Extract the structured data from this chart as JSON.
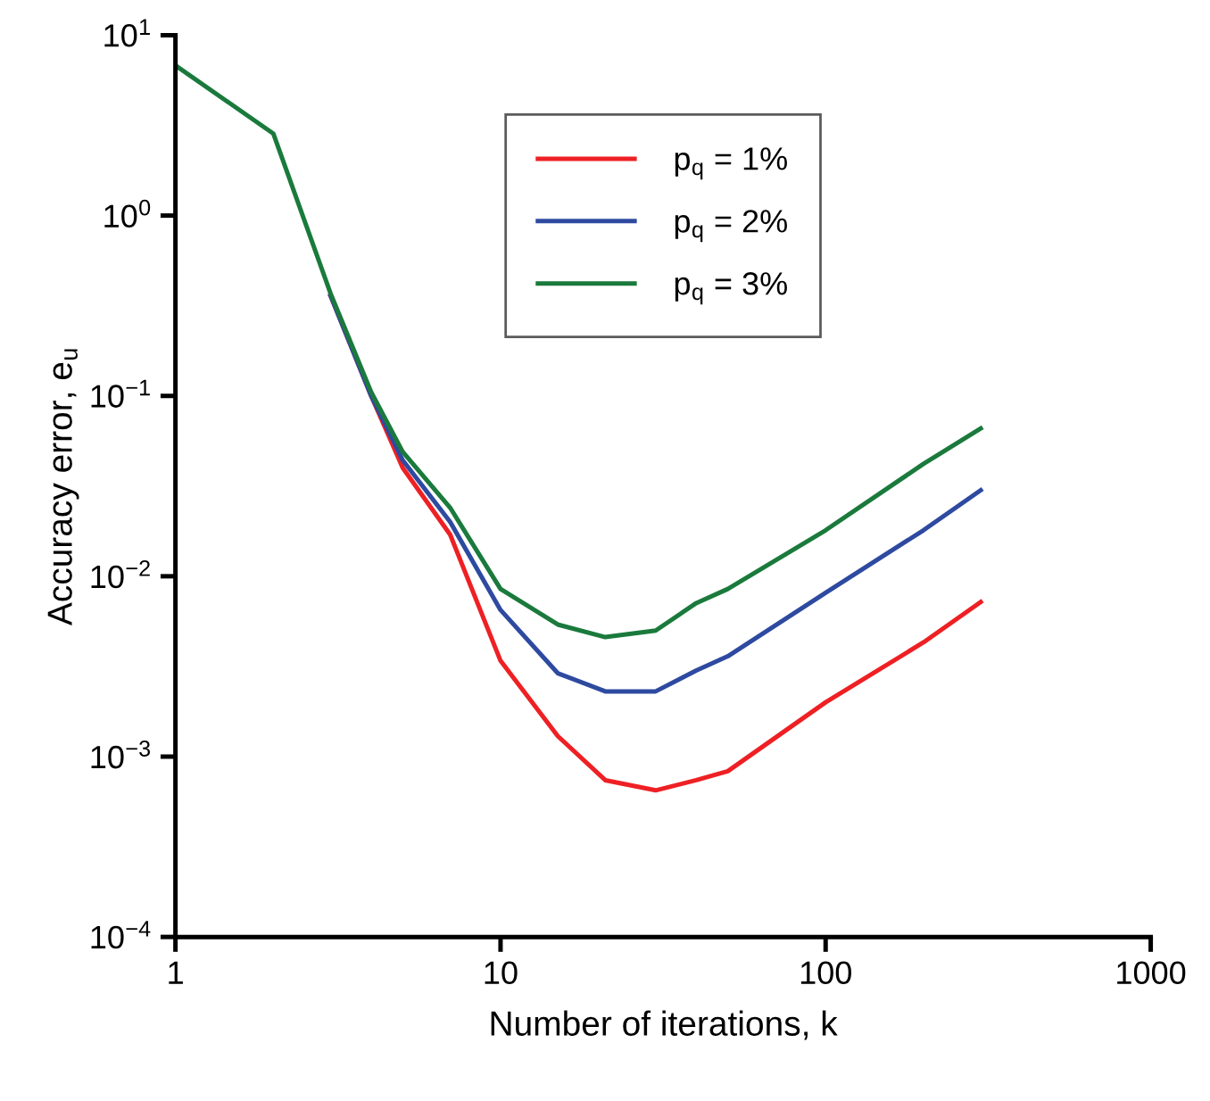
{
  "chart_data": {
    "type": "line",
    "xlabel": "Number of iterations, k",
    "ylabel": "Accuracy error, e$_{u}$",
    "x": [
      1,
      2,
      3,
      4,
      5,
      7,
      10,
      15,
      21,
      30,
      40,
      50,
      100,
      200,
      300
    ],
    "series": [
      {
        "name": "p$_{q}$ = 1%",
        "color": "#ee2024",
        "values": [
          null,
          null,
          0.36,
          0.1,
          0.04,
          0.017,
          0.0034,
          0.0013,
          0.00074,
          0.00065,
          0.00074,
          0.00083,
          0.002,
          0.0043,
          0.0072
        ]
      },
      {
        "name": "p$_{q}$ = 2%",
        "color": "#2e4aa0",
        "values": [
          null,
          null,
          0.36,
          0.1,
          0.044,
          0.02,
          0.0065,
          0.0029,
          0.0023,
          0.0023,
          0.003,
          0.0036,
          0.0081,
          0.018,
          0.03
        ]
      },
      {
        "name": "p$_{q}$ = 3%",
        "color": "#1a7a3c",
        "values": [
          6.8,
          2.85,
          0.37,
          0.105,
          0.049,
          0.024,
          0.0085,
          0.0054,
          0.0046,
          0.005,
          0.0071,
          0.0085,
          0.018,
          0.042,
          0.066
        ]
      }
    ],
    "log": "xy",
    "xlim": [
      1,
      1000
    ],
    "ylim": [
      0.0001,
      10
    ],
    "xticks": [
      1,
      10,
      100,
      1000
    ],
    "yticks": [
      {
        "value": 10,
        "label": "10$^{1}$"
      },
      {
        "value": 1,
        "label": "10$^{0}$"
      },
      {
        "value": 0.1,
        "label": "10$^{−1}$"
      },
      {
        "value": 0.01,
        "label": "10$^{−2}$"
      },
      {
        "value": 0.001,
        "label": "10$^{−3}$"
      },
      {
        "value": 0.0001,
        "label": "10$^{−4}$"
      }
    ],
    "grid": false,
    "legend": "top center",
    "marker": "none",
    "line_style": "solid"
  }
}
